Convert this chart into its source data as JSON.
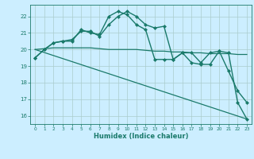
{
  "xlabel": "Humidex (Indice chaleur)",
  "bg_color": "#cceeff",
  "grid_color": "#aacccc",
  "line_color": "#1a7a6a",
  "xlim": [
    -0.5,
    23.5
  ],
  "ylim": [
    15.5,
    22.7
  ],
  "yticks": [
    16,
    17,
    18,
    19,
    20,
    21,
    22
  ],
  "xticks": [
    0,
    1,
    2,
    3,
    4,
    5,
    6,
    7,
    8,
    9,
    10,
    11,
    12,
    13,
    14,
    15,
    16,
    17,
    18,
    19,
    20,
    21,
    22,
    23
  ],
  "series": [
    {
      "x": [
        0,
        1,
        2,
        3,
        4,
        5,
        6,
        7,
        8,
        9,
        10,
        11,
        12,
        13,
        14,
        15,
        16,
        17,
        18,
        19,
        20,
        21,
        22,
        23
      ],
      "y": [
        19.5,
        20.0,
        20.4,
        20.5,
        20.6,
        21.1,
        21.1,
        20.8,
        21.5,
        22.0,
        22.3,
        22.0,
        21.5,
        21.3,
        21.4,
        19.4,
        19.8,
        19.8,
        19.2,
        19.8,
        19.9,
        18.7,
        17.5,
        16.8
      ],
      "marker": "D",
      "markersize": 2.0,
      "linewidth": 1.0
    },
    {
      "x": [
        0,
        1,
        2,
        3,
        4,
        5,
        6,
        7,
        8,
        9,
        10,
        11,
        12,
        13,
        14,
        15,
        16,
        17,
        18,
        19,
        20,
        21,
        22,
        23
      ],
      "y": [
        19.5,
        20.0,
        20.4,
        20.5,
        20.5,
        21.2,
        21.0,
        20.9,
        22.0,
        22.3,
        22.1,
        21.5,
        21.2,
        19.4,
        19.4,
        19.4,
        19.8,
        19.2,
        19.1,
        19.1,
        19.9,
        19.8,
        16.8,
        15.8
      ],
      "marker": "D",
      "markersize": 2.0,
      "linewidth": 1.0
    },
    {
      "x": [
        0,
        1,
        2,
        3,
        4,
        5,
        6,
        7,
        8,
        9,
        10,
        11,
        12,
        13,
        14,
        15,
        16,
        17,
        18,
        19,
        20,
        21,
        22,
        23
      ],
      "y": [
        20.0,
        20.05,
        20.1,
        20.1,
        20.1,
        20.1,
        20.1,
        20.05,
        20.0,
        20.0,
        20.0,
        20.0,
        19.95,
        19.9,
        19.9,
        19.85,
        19.85,
        19.8,
        19.8,
        19.75,
        19.75,
        19.75,
        19.7,
        19.7
      ],
      "marker": null,
      "markersize": 0,
      "linewidth": 0.9
    },
    {
      "x": [
        0,
        23
      ],
      "y": [
        20.0,
        15.8
      ],
      "marker": null,
      "markersize": 0,
      "linewidth": 0.9
    }
  ]
}
